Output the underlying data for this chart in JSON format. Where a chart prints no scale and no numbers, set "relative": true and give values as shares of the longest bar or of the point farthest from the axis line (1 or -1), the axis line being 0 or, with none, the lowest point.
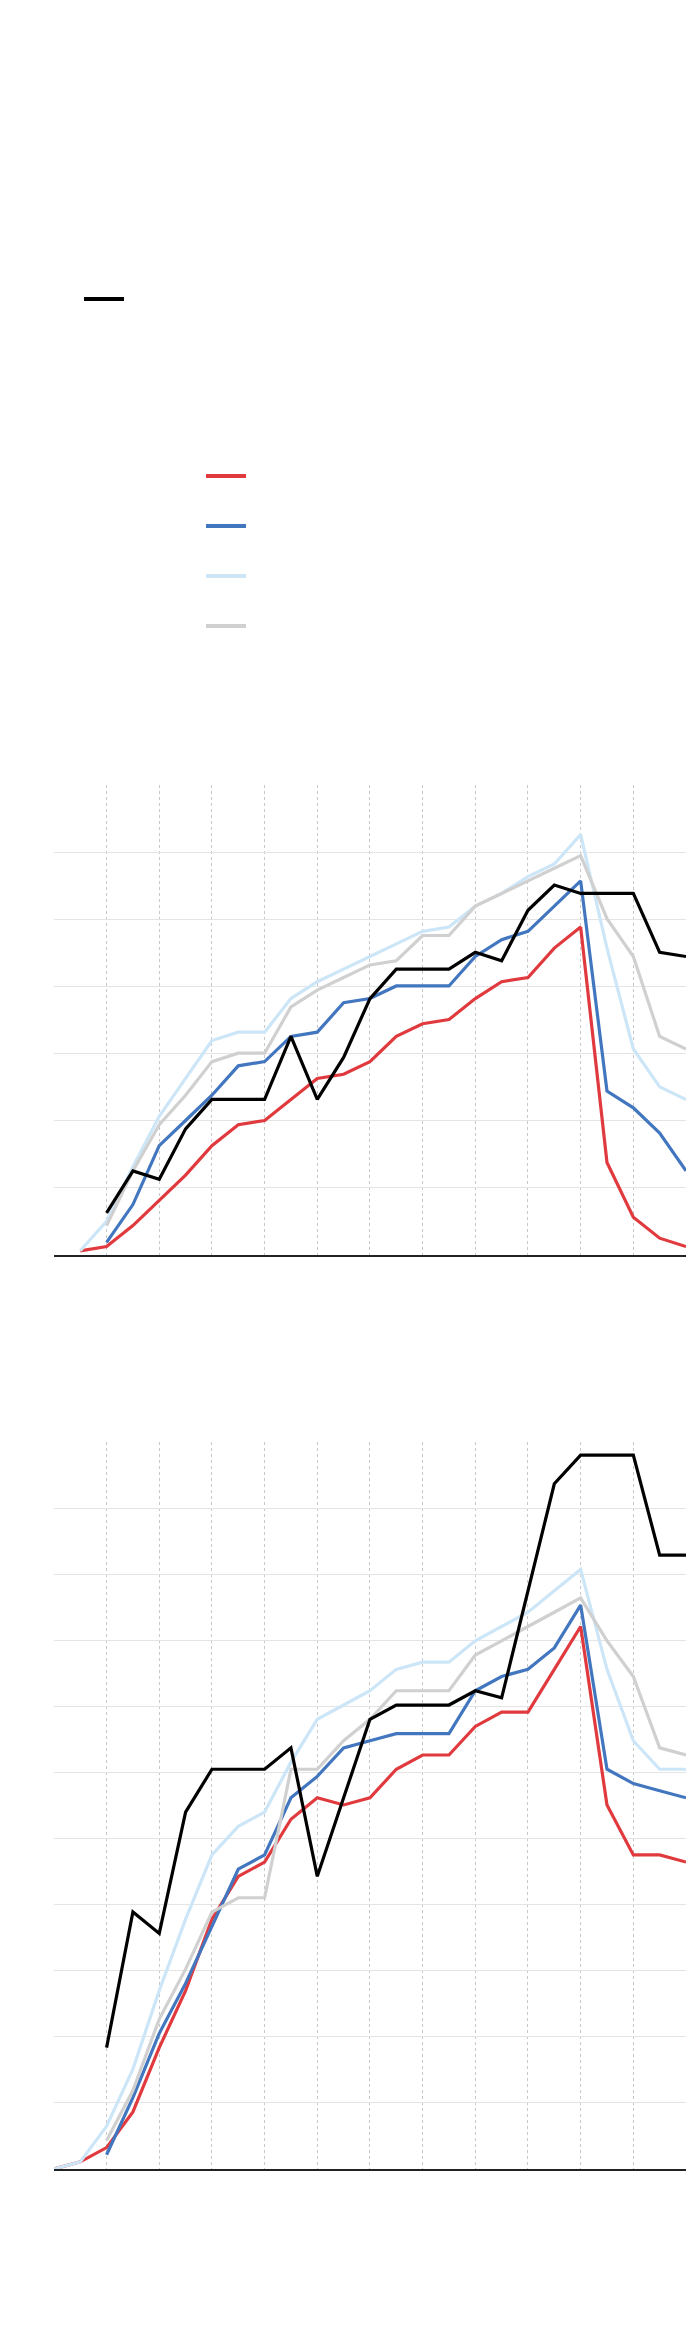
{
  "chart_data": [
    {
      "type": "line",
      "relative": true,
      "grid": true,
      "line_style": "solid",
      "marker": "none",
      "categories": [
        null,
        null,
        null,
        null,
        null,
        null,
        null,
        null,
        null,
        null,
        null,
        null,
        null,
        null,
        null,
        null,
        null,
        null,
        null,
        null,
        null,
        null,
        null,
        null
      ],
      "series": [
        {
          "color": "#e03a3e",
          "values": [
            0.01,
            0.02,
            0.07,
            0.13,
            0.19,
            0.26,
            0.31,
            0.32,
            0.37,
            0.42,
            0.43,
            0.46,
            0.52,
            0.55,
            0.56,
            0.61,
            0.65,
            0.66,
            0.73,
            0.78,
            0.22,
            0.09,
            0.04,
            0.02
          ]
        },
        {
          "color": "#4277c0",
          "values": [
            null,
            0.03,
            0.12,
            0.26,
            0.32,
            0.38,
            0.45,
            0.46,
            0.52,
            0.53,
            0.6,
            0.61,
            0.64,
            0.64,
            0.64,
            0.71,
            0.75,
            0.77,
            0.83,
            0.89,
            0.39,
            0.35,
            0.29,
            0.2
          ]
        },
        {
          "color": "#cce6f8",
          "values": [
            0.01,
            0.08,
            0.21,
            0.33,
            0.42,
            0.51,
            0.53,
            0.53,
            0.61,
            0.65,
            0.68,
            0.71,
            0.74,
            0.77,
            0.78,
            0.83,
            0.86,
            0.9,
            0.93,
            1,
            0.73,
            0.49,
            0.4,
            0.37
          ]
        },
        {
          "color": "#d0d0d0",
          "values": [
            null,
            0.07,
            0.2,
            0.31,
            0.38,
            0.46,
            0.48,
            0.48,
            0.59,
            0.63,
            0.66,
            0.69,
            0.7,
            0.76,
            0.76,
            0.83,
            0.86,
            0.89,
            0.92,
            0.95,
            0.8,
            0.71,
            0.52,
            0.49
          ]
        },
        {
          "color": "#000000",
          "values": [
            null,
            0.1,
            0.2,
            0.18,
            0.3,
            0.37,
            0.37,
            0.37,
            0.52,
            0.37,
            0.47,
            0.61,
            0.68,
            0.68,
            0.68,
            0.72,
            0.7,
            0.82,
            0.88,
            0.86,
            0.86,
            0.86,
            0.72,
            0.71
          ]
        }
      ]
    },
    {
      "type": "line",
      "relative": true,
      "grid": true,
      "line_style": "solid",
      "marker": "none",
      "categories": [
        null,
        null,
        null,
        null,
        null,
        null,
        null,
        null,
        null,
        null,
        null,
        null,
        null,
        null,
        null,
        null,
        null,
        null,
        null,
        null,
        null,
        null,
        null,
        null,
        null
      ],
      "series": [
        {
          "color": "#e03a3e",
          "values": [
            0.0,
            0.01,
            0.03,
            0.08,
            0.17,
            0.25,
            0.35,
            0.41,
            0.43,
            0.49,
            0.52,
            0.51,
            0.52,
            0.56,
            0.58,
            0.58,
            0.62,
            0.64,
            0.64,
            0.7,
            0.76,
            0.51,
            0.44,
            0.44,
            0.43
          ]
        },
        {
          "color": "#4277c0",
          "values": [
            null,
            null,
            0.02,
            0.1,
            0.19,
            0.26,
            0.34,
            0.42,
            0.44,
            0.52,
            0.55,
            0.59,
            0.6,
            0.61,
            0.61,
            0.61,
            0.67,
            0.69,
            0.7,
            0.73,
            0.79,
            0.56,
            0.54,
            0.53,
            0.52
          ]
        },
        {
          "color": "#cce6f8",
          "values": [
            0.0,
            0.01,
            0.06,
            0.14,
            0.25,
            0.35,
            0.44,
            0.48,
            0.5,
            0.57,
            0.63,
            0.65,
            0.67,
            0.7,
            0.71,
            0.71,
            0.74,
            0.76,
            0.78,
            0.81,
            0.84,
            0.7,
            0.6,
            0.56,
            0.56
          ]
        },
        {
          "color": "#d0d0d0",
          "values": [
            null,
            null,
            0.04,
            0.11,
            0.21,
            0.28,
            0.36,
            0.38,
            0.38,
            0.56,
            0.56,
            0.6,
            0.63,
            0.67,
            0.67,
            0.67,
            0.72,
            0.74,
            0.76,
            0.78,
            0.8,
            0.74,
            0.69,
            0.59,
            0.58
          ]
        },
        {
          "color": "#000000",
          "values": [
            null,
            null,
            0.17,
            0.36,
            0.33,
            0.5,
            0.56,
            0.56,
            0.56,
            0.59,
            0.41,
            0.52,
            0.63,
            0.65,
            0.65,
            0.65,
            0.67,
            0.66,
            0.81,
            0.96,
            1,
            1,
            1,
            0.86,
            0.86
          ]
        }
      ]
    }
  ]
}
